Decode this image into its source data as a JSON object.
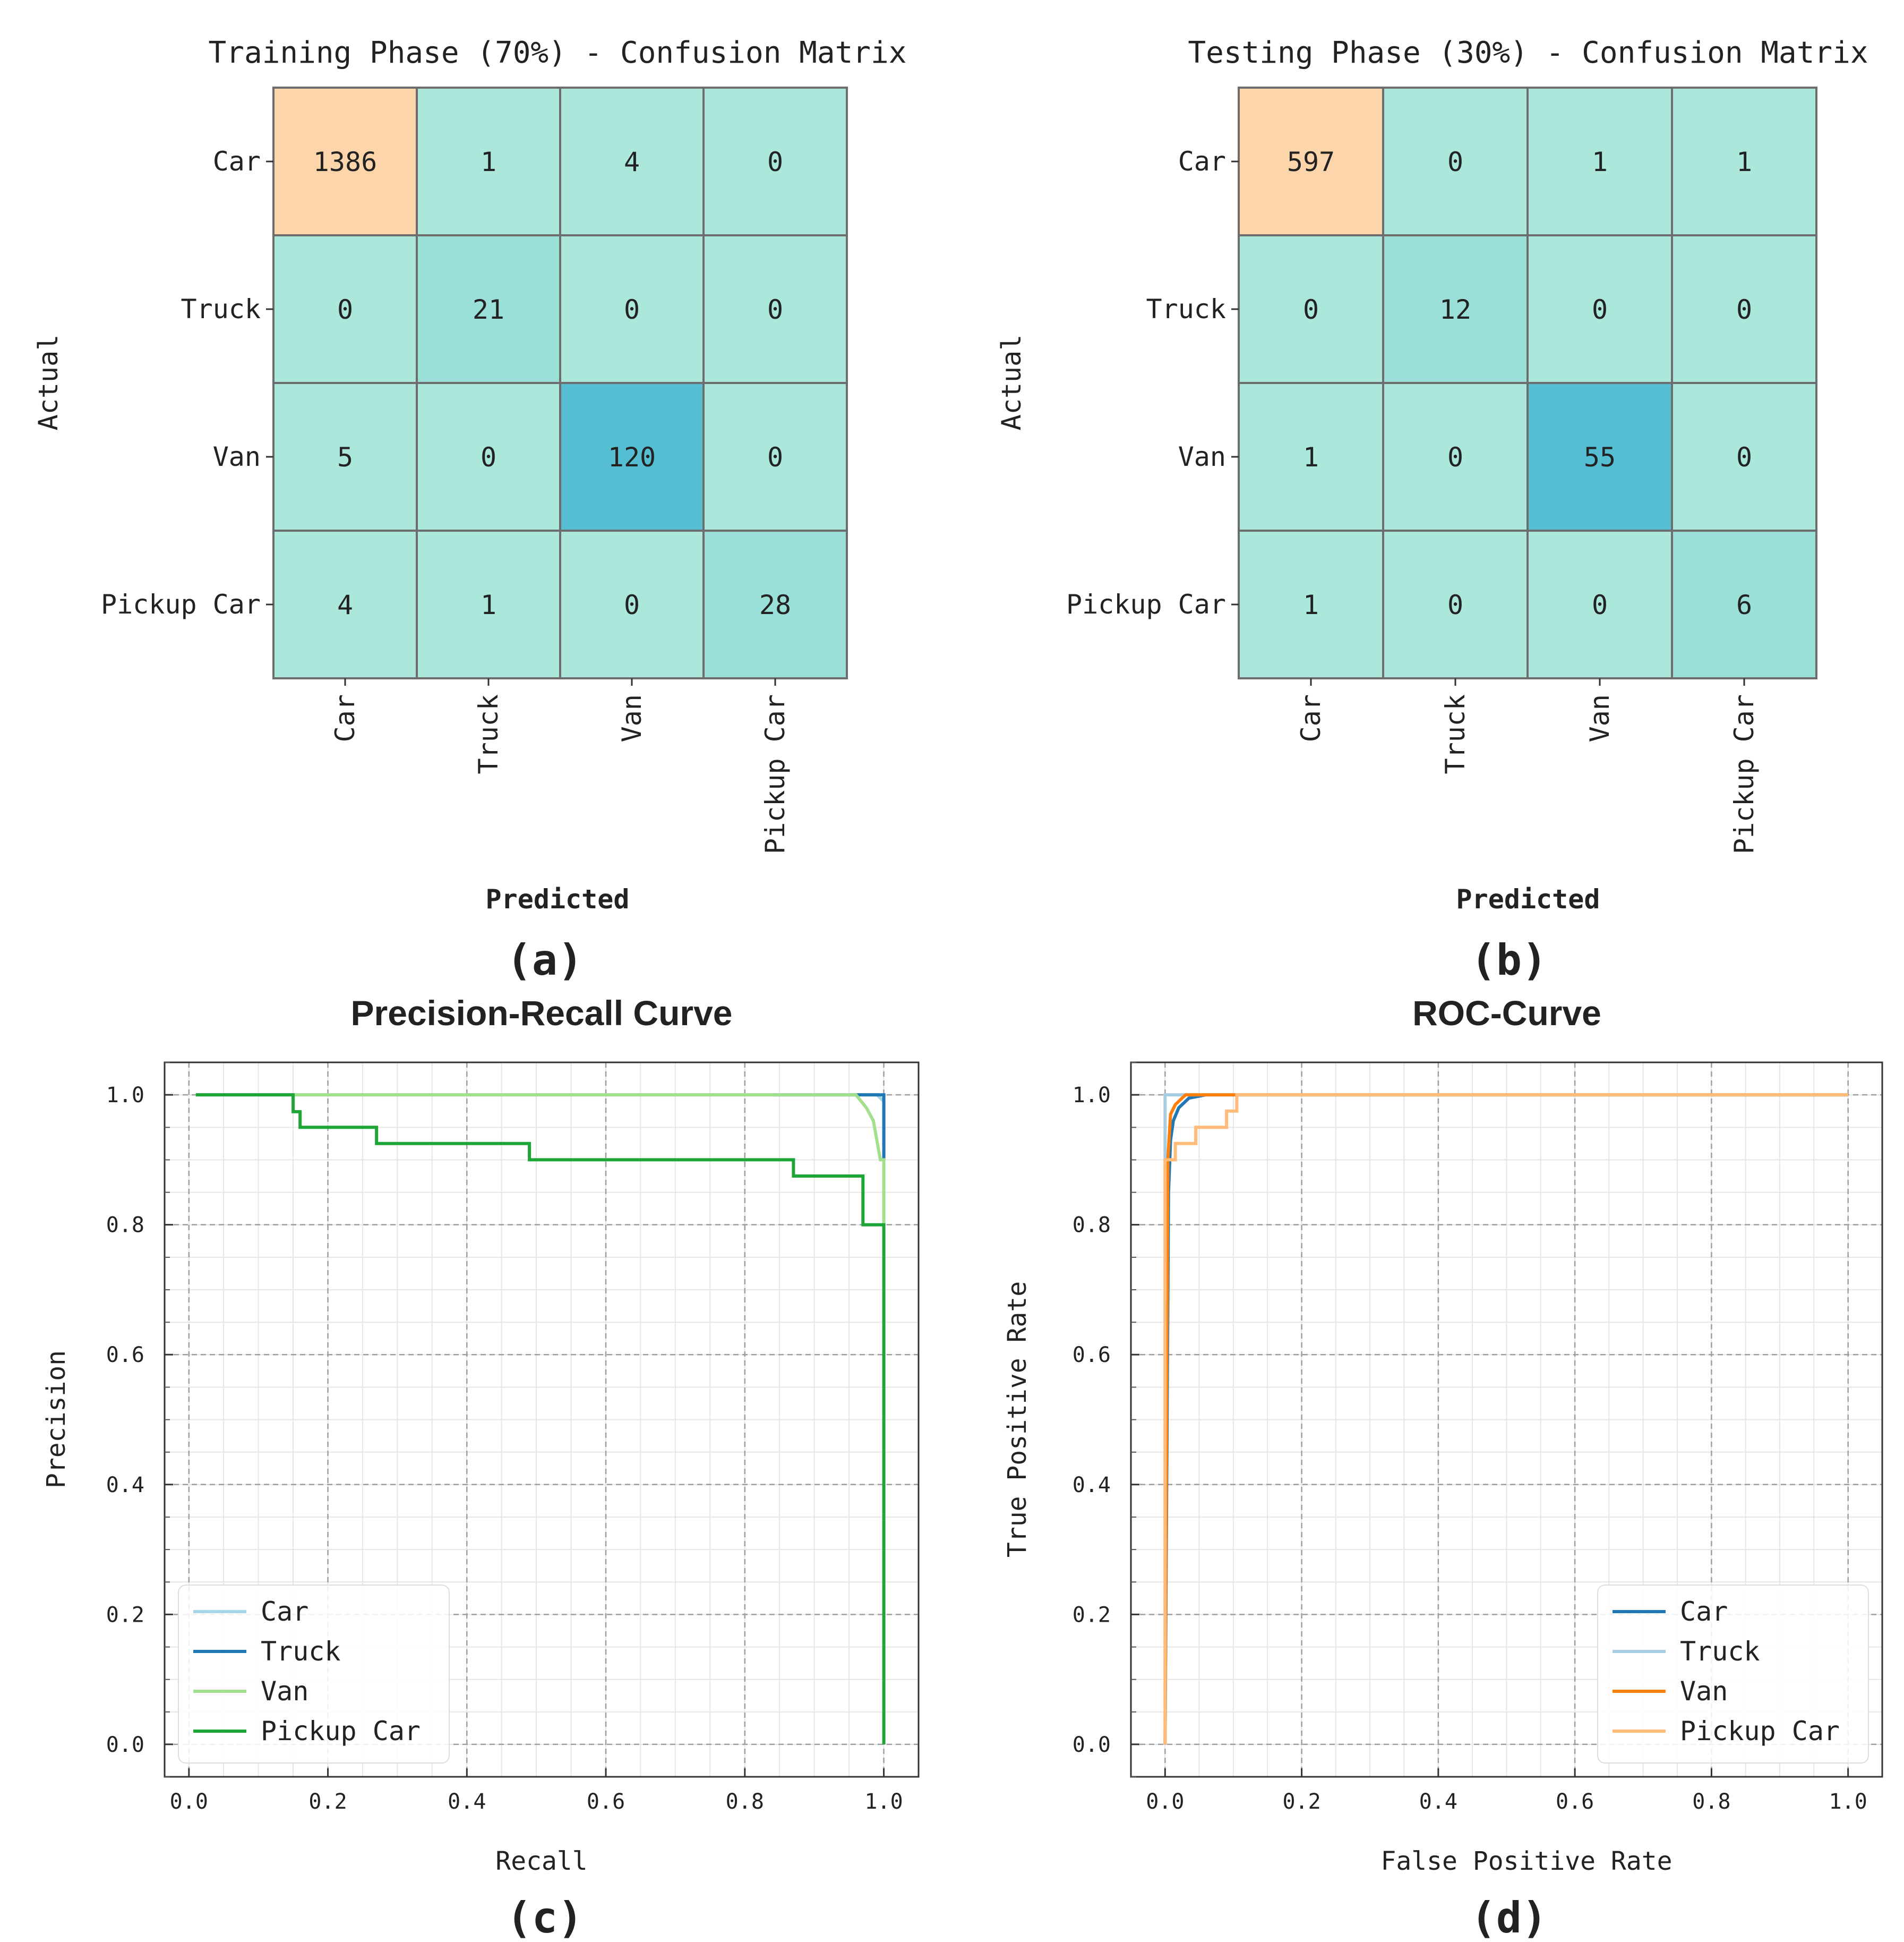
{
  "chart_data": [
    {
      "type": "heatmap",
      "panel": "(a)",
      "title": "Training Phase (70%) - Confusion Matrix",
      "xlabel": "Predicted",
      "ylabel": "Actual",
      "row_labels": [
        "Car",
        "Truck",
        "Van",
        "Pickup Car"
      ],
      "col_labels": [
        "Car",
        "Truck",
        "Van",
        "Pickup Car"
      ],
      "values": [
        [
          1386,
          1,
          4,
          0
        ],
        [
          0,
          21,
          0,
          0
        ],
        [
          5,
          0,
          120,
          0
        ],
        [
          4,
          1,
          0,
          28
        ]
      ],
      "colors": {
        "peak": "#fdd5aa",
        "high": "#56bed3",
        "mid": "#9adfd8",
        "low": "#abe8db",
        "grid": "#6d6d6d"
      }
    },
    {
      "type": "heatmap",
      "panel": "(b)",
      "title": "Testing Phase (30%) - Confusion Matrix",
      "xlabel": "Predicted",
      "ylabel": "Actual",
      "row_labels": [
        "Car",
        "Truck",
        "Van",
        "Pickup Car"
      ],
      "col_labels": [
        "Car",
        "Truck",
        "Van",
        "Pickup Car"
      ],
      "values": [
        [
          597,
          0,
          1,
          1
        ],
        [
          0,
          12,
          0,
          0
        ],
        [
          1,
          0,
          55,
          0
        ],
        [
          1,
          0,
          0,
          6
        ]
      ],
      "colors": {
        "peak": "#fdd5aa",
        "high": "#56bed3",
        "mid": "#9adfd8",
        "low": "#abe8db",
        "grid": "#6d6d6d"
      }
    },
    {
      "type": "line",
      "panel": "(c)",
      "title": "Precision-Recall Curve",
      "xlabel": "Recall",
      "ylabel": "Precision",
      "xlim": [
        -0.035,
        1.05
      ],
      "ylim": [
        -0.05,
        1.05
      ],
      "xticks": [
        "0.0",
        "0.2",
        "0.4",
        "0.6",
        "0.8",
        "1.0"
      ],
      "yticks": [
        "0.0",
        "0.2",
        "0.4",
        "0.6",
        "0.8",
        "1.0"
      ],
      "grid": true,
      "legend": "bottom-left",
      "series": [
        {
          "name": "Car",
          "color": "#a6d6e8",
          "points": [
            [
              0.01,
              1.0
            ],
            [
              0.99,
              1.0
            ],
            [
              1.0,
              0.99
            ],
            [
              1.0,
              0.9
            ]
          ]
        },
        {
          "name": "Truck",
          "color": "#1f78b4",
          "points": [
            [
              0.84,
              1.0
            ],
            [
              1.0,
              1.0
            ],
            [
              1.0,
              0.9
            ]
          ]
        },
        {
          "name": "Van",
          "color": "#a3e08e",
          "points": [
            [
              0.01,
              1.0
            ],
            [
              0.96,
              1.0
            ],
            [
              0.975,
              0.98
            ],
            [
              0.985,
              0.96
            ],
            [
              0.99,
              0.93
            ],
            [
              0.995,
              0.9
            ],
            [
              1.0,
              0.9
            ],
            [
              1.0,
              0.8
            ]
          ]
        },
        {
          "name": "Pickup Car",
          "color": "#1ea538",
          "points": [
            [
              0.01,
              1.0
            ],
            [
              0.15,
              1.0
            ],
            [
              0.15,
              0.974
            ],
            [
              0.16,
              0.974
            ],
            [
              0.16,
              0.95
            ],
            [
              0.27,
              0.95
            ],
            [
              0.27,
              0.925
            ],
            [
              0.49,
              0.925
            ],
            [
              0.49,
              0.9
            ],
            [
              0.87,
              0.9
            ],
            [
              0.87,
              0.875
            ],
            [
              0.97,
              0.875
            ],
            [
              0.97,
              0.8
            ],
            [
              1.0,
              0.8
            ],
            [
              1.0,
              0.0
            ]
          ]
        }
      ]
    },
    {
      "type": "line",
      "panel": "(d)",
      "title": "ROC-Curve",
      "xlabel": "False Positive Rate",
      "ylabel": "True Positive Rate",
      "xlim": [
        -0.05,
        1.05
      ],
      "ylim": [
        -0.05,
        1.05
      ],
      "xticks": [
        "0.0",
        "0.2",
        "0.4",
        "0.6",
        "0.8",
        "1.0"
      ],
      "yticks": [
        "0.0",
        "0.2",
        "0.4",
        "0.6",
        "0.8",
        "1.0"
      ],
      "grid": true,
      "legend": "bottom-right",
      "series": [
        {
          "name": "Car",
          "color": "#1f78b4",
          "points": [
            [
              0.0,
              0.0
            ],
            [
              0.005,
              0.85
            ],
            [
              0.008,
              0.93
            ],
            [
              0.012,
              0.96
            ],
            [
              0.02,
              0.98
            ],
            [
              0.035,
              0.995
            ],
            [
              0.06,
              1.0
            ],
            [
              1.0,
              1.0
            ]
          ]
        },
        {
          "name": "Truck",
          "color": "#a6cee3",
          "points": [
            [
              0.0,
              0.0
            ],
            [
              0.0,
              1.0
            ],
            [
              1.0,
              1.0
            ]
          ]
        },
        {
          "name": "Van",
          "color": "#ff7f0e",
          "points": [
            [
              0.0,
              0.0
            ],
            [
              0.004,
              0.9
            ],
            [
              0.008,
              0.97
            ],
            [
              0.015,
              0.985
            ],
            [
              0.03,
              1.0
            ],
            [
              1.0,
              1.0
            ]
          ]
        },
        {
          "name": "Pickup Car",
          "color": "#ffbb78",
          "points": [
            [
              0.0,
              0.0
            ],
            [
              0.0,
              0.9
            ],
            [
              0.015,
              0.9
            ],
            [
              0.015,
              0.925
            ],
            [
              0.045,
              0.925
            ],
            [
              0.045,
              0.95
            ],
            [
              0.09,
              0.95
            ],
            [
              0.09,
              0.975
            ],
            [
              0.105,
              0.975
            ],
            [
              0.105,
              1.0
            ],
            [
              1.0,
              1.0
            ]
          ]
        }
      ]
    }
  ]
}
